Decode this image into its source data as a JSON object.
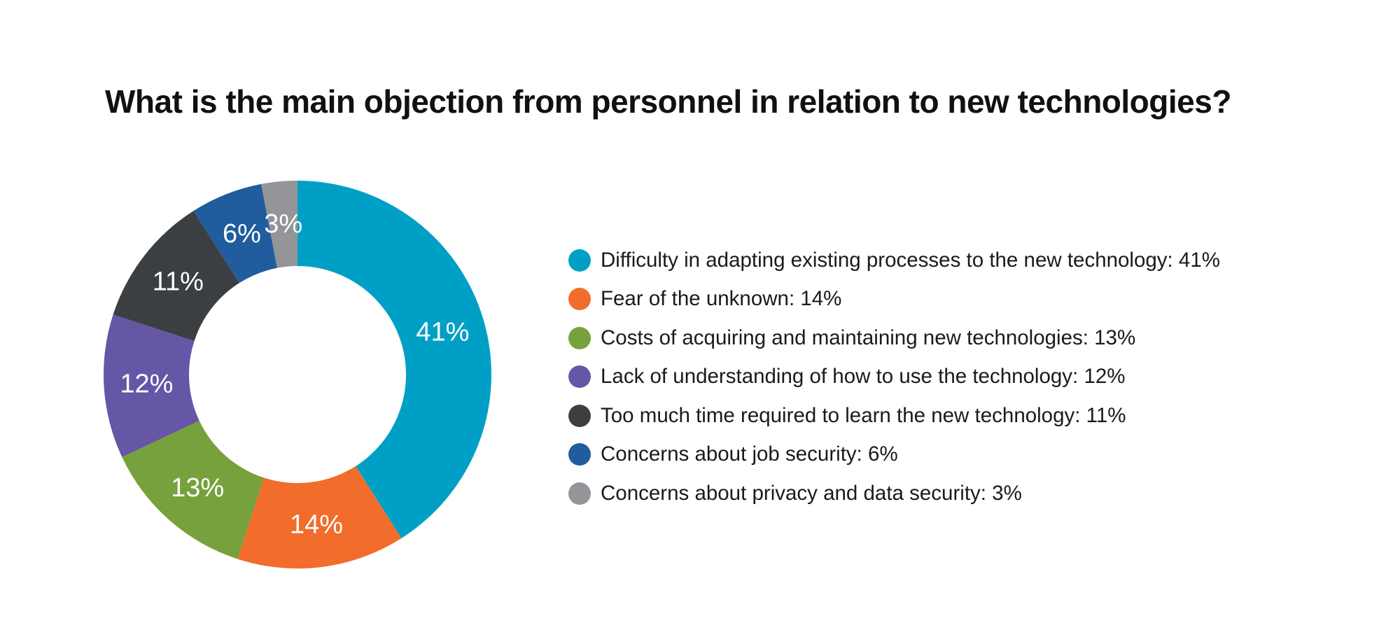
{
  "chart_data": {
    "type": "pie",
    "donut": true,
    "title": "What is the main objection from personnel in relation to new technologies?",
    "slices": [
      {
        "name": "Difficulty in adapting existing processes to the new technology",
        "value": 41,
        "label": "41%",
        "legend": "Difficulty in adapting existing processes to the new technology: 41%",
        "color": "#00A0C6"
      },
      {
        "name": "Fear of the unknown",
        "value": 14,
        "label": "14%",
        "legend": "Fear of the unknown: 14%",
        "color": "#F26C2B"
      },
      {
        "name": "Costs of acquiring and maintaining new technologies",
        "value": 13,
        "label": "13%",
        "legend": "Costs of acquiring and maintaining new technologies: 13%",
        "color": "#77A13C"
      },
      {
        "name": "Lack of understanding of how to use the technology",
        "value": 12,
        "label": "12%",
        "legend": "Lack of understanding of how to use the technology: 12%",
        "color": "#6556A6"
      },
      {
        "name": "Too much time required to learn the new technology",
        "value": 11,
        "label": "11%",
        "legend": "Too much time required to learn the new technology: 11%",
        "color": "#3C3F42"
      },
      {
        "name": "Concerns about job security",
        "value": 6,
        "label": "6%",
        "legend": "Concerns about job security: 6%",
        "color": "#205C9E"
      },
      {
        "name": "Concerns about privacy and data security",
        "value": 3,
        "label": "3%",
        "legend": "Concerns about privacy and data security: 3%",
        "color": "#939598"
      }
    ],
    "legend_position": "right"
  }
}
